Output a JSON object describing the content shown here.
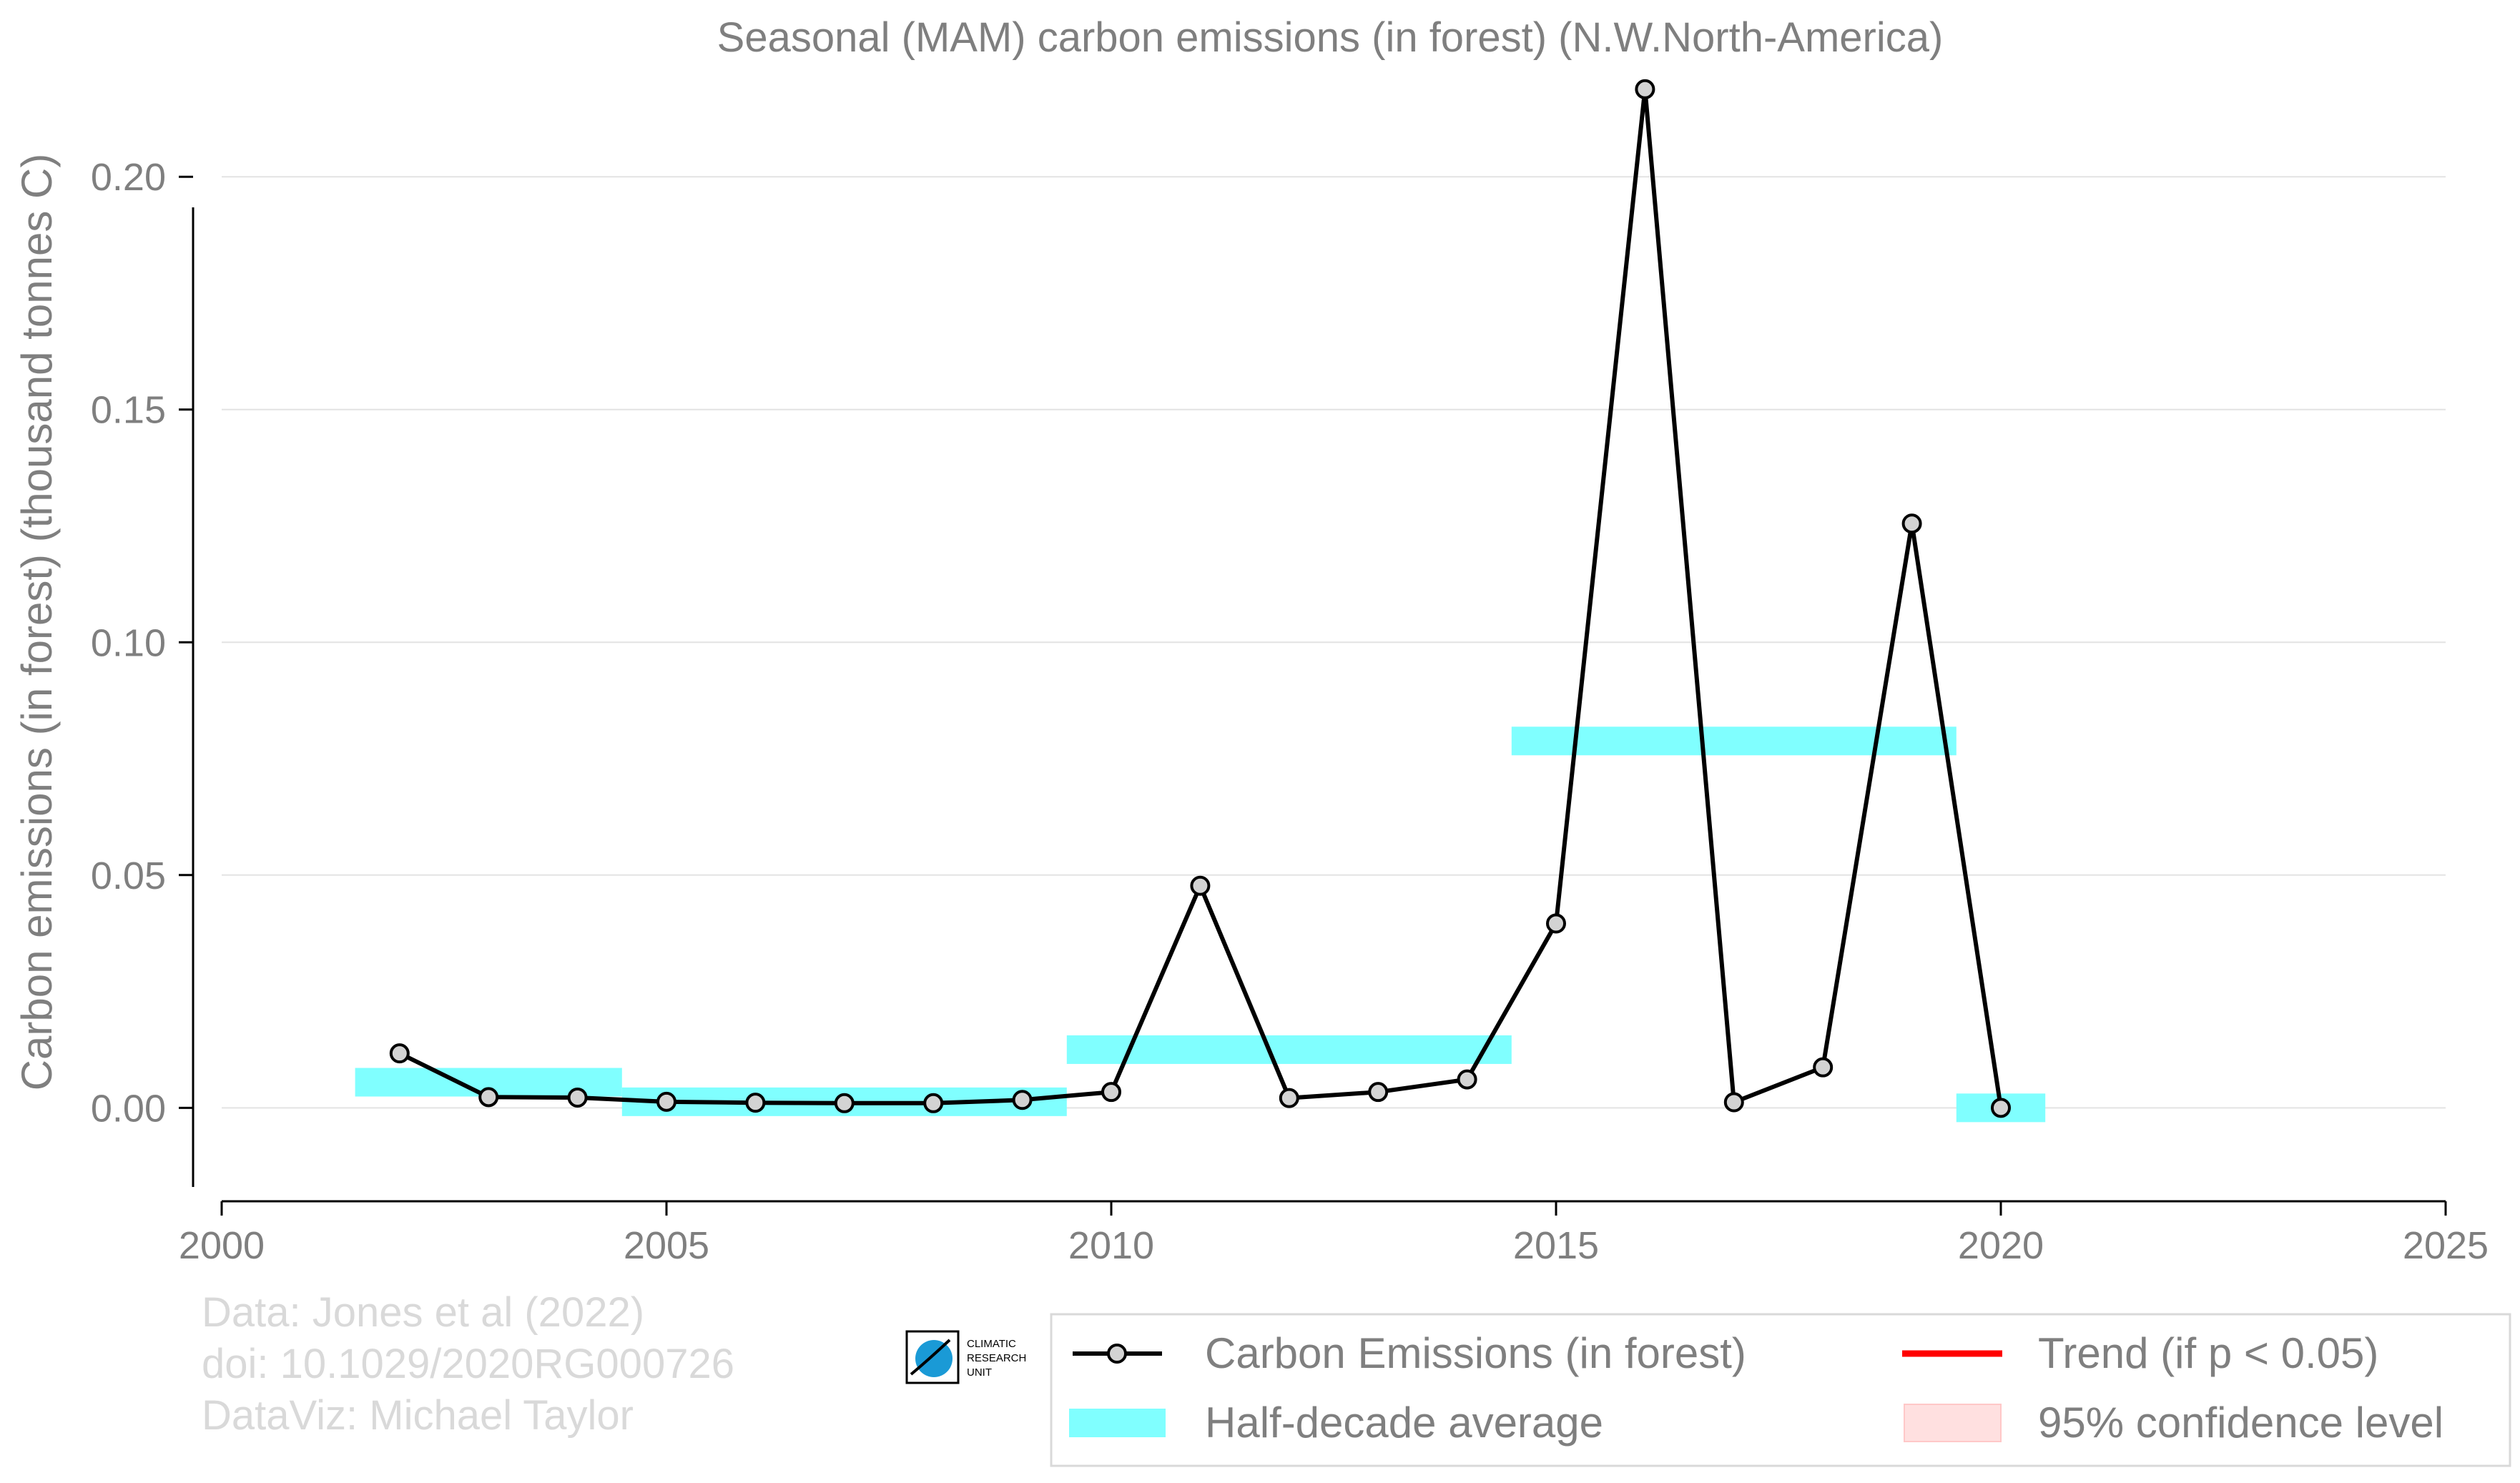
{
  "chart_data": {
    "type": "line",
    "title": "Seasonal (MAM) carbon emissions (in forest) (N.W.North-America)",
    "xlabel": "",
    "ylabel": "Carbon emissions (in forest) (thousand tonnes C)",
    "xlim": [
      2000,
      2025
    ],
    "ylim": [
      -0.017,
      0.218
    ],
    "xticks": [
      "2000",
      "2005",
      "2010",
      "2015",
      "2020",
      "2025"
    ],
    "yticks": [
      "0.00",
      "0.05",
      "0.10",
      "0.15",
      "0.20"
    ],
    "grid": "horizontal",
    "series": [
      {
        "name": "Carbon Emissions (in forest)",
        "color": "#000000",
        "marker_fill": "#d3d3d3",
        "x": [
          2002,
          2003,
          2004,
          2005,
          2006,
          2007,
          2008,
          2009,
          2010,
          2011,
          2012,
          2013,
          2014,
          2015,
          2016,
          2017,
          2018,
          2019,
          2020
        ],
        "y": [
          0.0117,
          0.0023,
          0.0022,
          0.0013,
          0.0011,
          0.001,
          0.001,
          0.0017,
          0.0034,
          0.0477,
          0.0021,
          0.0034,
          0.0061,
          0.0396,
          0.2188,
          0.0012,
          0.0087,
          0.1255,
          0.0
        ]
      }
    ],
    "half_decade_average": {
      "name": "Half-decade average",
      "color": "#80ffff",
      "bars": [
        {
          "x_start": 2001.5,
          "x_end": 2004.5,
          "y": 0.0055
        },
        {
          "x_start": 2004.5,
          "x_end": 2009.5,
          "y": 0.0013
        },
        {
          "x_start": 2009.5,
          "x_end": 2014.5,
          "y": 0.0125
        },
        {
          "x_start": 2014.5,
          "x_end": 2019.5,
          "y": 0.0788
        },
        {
          "x_start": 2019.5,
          "x_end": 2020.5,
          "y": 0.0
        }
      ]
    },
    "legend": {
      "placement": "bottom-right",
      "items": [
        {
          "label": "Carbon Emissions (in forest)",
          "kind": "line-marker",
          "color": "#000000"
        },
        {
          "label": "Trend (if p < 0.05)",
          "kind": "line",
          "color": "#ff0000"
        },
        {
          "label": "Half-decade average",
          "kind": "band",
          "color": "#80ffff"
        },
        {
          "label": "95% confidence level",
          "kind": "band",
          "color": "#ffe0e0"
        }
      ]
    }
  },
  "credits": [
    "Data: Jones et al (2022)",
    "doi: 10.1029/2020RG000726",
    "DataViz: Michael Taylor"
  ],
  "logo": {
    "name": "climatic-research-unit-logo",
    "lines": [
      "CLIMATIC",
      "RESEARCH",
      "UNIT"
    ]
  }
}
